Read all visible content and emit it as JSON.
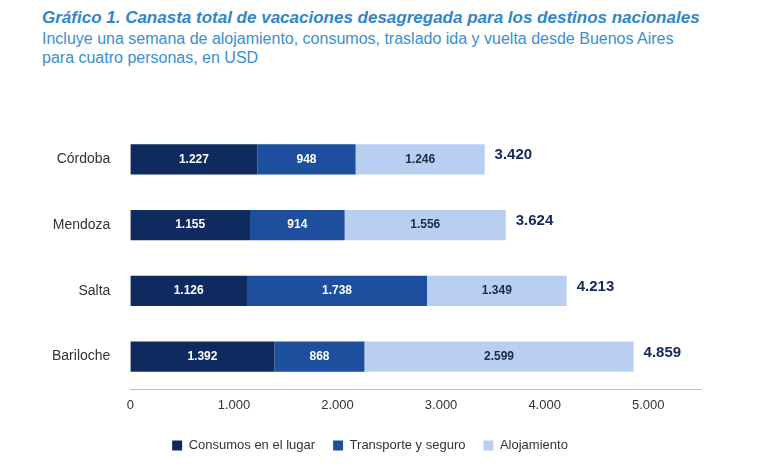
{
  "chart_data": {
    "type": "bar",
    "title": "Gráfico 1. Canasta total de vacaciones desagregada para los destinos nacionales",
    "subtitle": "Incluye una semana de alojamiento, consumos, traslado ida y vuelta desde Buenos Aires para cuatro personas, en USD",
    "orientation": "horizontal",
    "stacked": true,
    "data_labels": true,
    "grid": false,
    "legend": "bottom",
    "categories": [
      "Córdoba",
      "Mendoza",
      "Salta",
      "Bariloche"
    ],
    "series": [
      {
        "name": "Consumos en el lugar",
        "color": "#0f2a5e",
        "values": [
          1227,
          1155,
          1126,
          1392
        ],
        "value_labels": [
          "1.227",
          "1.155",
          "1.126",
          "1.392"
        ]
      },
      {
        "name": "Transporte y seguro",
        "color": "#1d4f9e",
        "values": [
          948,
          914,
          1738,
          868
        ],
        "value_labels": [
          "948",
          "914",
          "1.738",
          "868"
        ]
      },
      {
        "name": "Alojamiento",
        "color": "#b8cff2",
        "values": [
          1246,
          1556,
          1349,
          2599
        ],
        "value_labels": [
          "1.246",
          "1.556",
          "1.349",
          "2.599"
        ]
      }
    ],
    "totals": [
      3420,
      3624,
      4213,
      4859
    ],
    "total_labels": [
      "3.420",
      "3.624",
      "4.213",
      "4.859"
    ],
    "xlim": [
      0,
      5500
    ],
    "xticks": [
      0,
      {
        "value": 1000,
        "label": "1.000"
      },
      {
        "value": 2000,
        "label": "2.000"
      },
      {
        "value": 3000,
        "label": "3.000"
      },
      {
        "value": 4000,
        "label": "4.000"
      },
      {
        "value": 5000,
        "label": "5.000"
      }
    ]
  }
}
